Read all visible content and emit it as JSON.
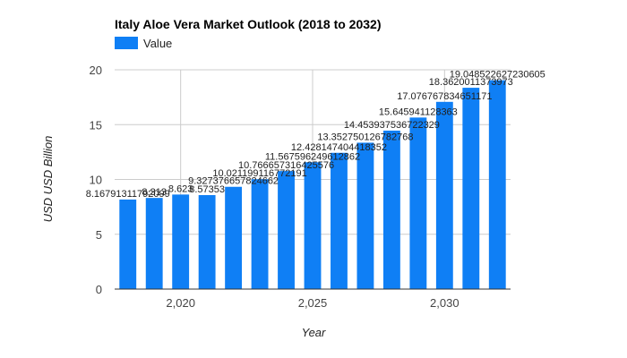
{
  "chart_data": {
    "type": "bar",
    "title": "Italy Aloe Vera Market Outlook (2018 to 2032)",
    "xlabel": "Year",
    "ylabel": "USD USD Billion",
    "ylim": [
      0,
      20
    ],
    "y_ticks": [
      "0",
      "5",
      "10",
      "15",
      "20"
    ],
    "x_ticks": [
      {
        "value": 2020,
        "label": "2,020"
      },
      {
        "value": 2025,
        "label": "2,025"
      },
      {
        "value": 2030,
        "label": "2,030"
      }
    ],
    "grid": true,
    "legend": "top-left",
    "series": [
      {
        "name": "Value",
        "color": "#0f7ff5",
        "x": [
          2018,
          2019,
          2020,
          2021,
          2022,
          2023,
          2024,
          2025,
          2026,
          2027,
          2028,
          2029,
          2030,
          2031,
          2032
        ],
        "values": [
          8.16791311792099,
          8.313,
          8.623,
          8.5735,
          9.327376657824662,
          10.02119911677219,
          10.766657316425576,
          11.567596249612862,
          12.428147404418352,
          13.352750126782768,
          14.453937536722329,
          15.645941128363,
          17.07676783465117,
          18.3620011373973,
          19.048522627230604
        ],
        "labels": [
          "8.16791311792099",
          "8.313",
          "8.623",
          "8.57353",
          "9.32737665782466​2",
          "10.0211991167721​91",
          "10.7666573164255​76",
          "11.5675962496128​62",
          "12.4281474044183​52",
          "13.3527501267827​68",
          "14.4539375367223​29",
          "15.645941128363",
          "17.0767678346511​71",
          "18.3620011373973",
          "19.048522627230605"
        ]
      }
    ]
  }
}
